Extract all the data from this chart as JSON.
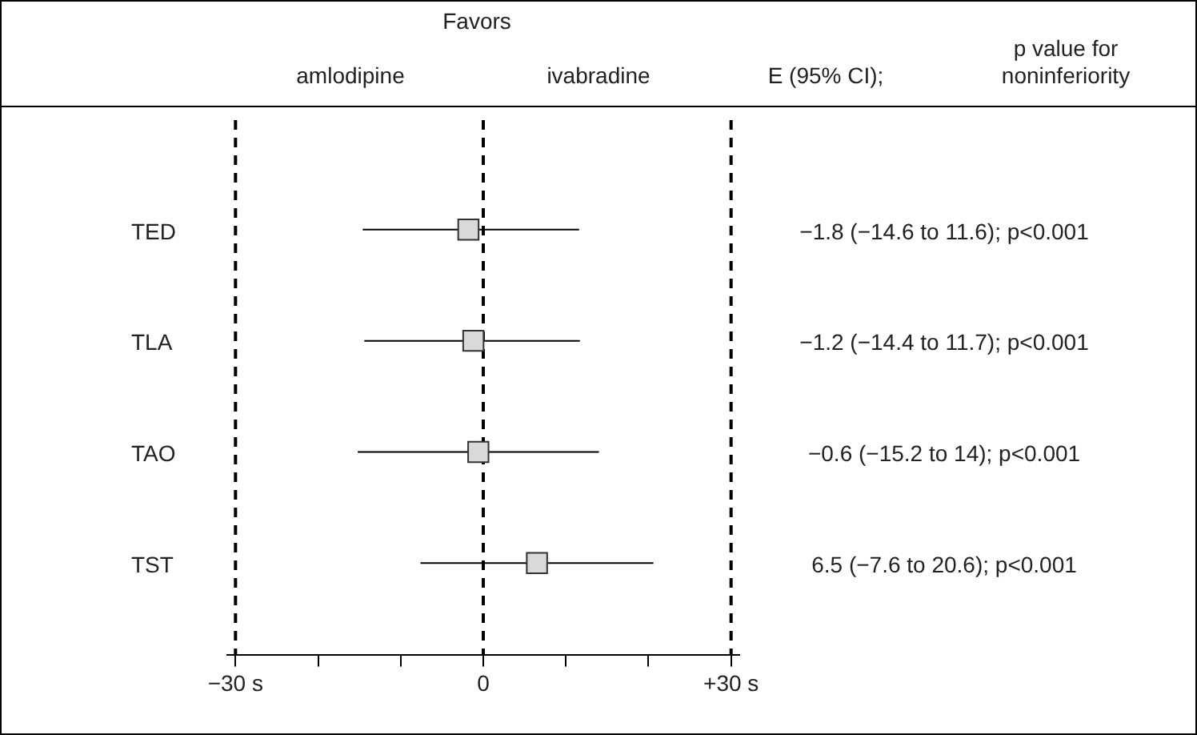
{
  "chart_data": {
    "type": "scatter",
    "orientation": "horizontal",
    "marker": "square",
    "color": "#d9d9d9",
    "categories": [
      "TED",
      "TLA",
      "TAO",
      "TST"
    ],
    "values": [
      -1.8,
      -1.2,
      -0.6,
      6.5
    ],
    "errors": [
      [
        -14.6,
        11.6
      ],
      [
        -14.4,
        11.7
      ],
      [
        -15.2,
        14
      ],
      [
        -7.6,
        20.6
      ]
    ],
    "value_labels": [
      "−1.8 (−14.6 to 11.6); p<0.001",
      "−1.2 (−14.4 to 11.7); p<0.001",
      "−0.6 (−15.2 to 14); p<0.001",
      "6.5 (−7.6 to 20.6); p<0.001"
    ],
    "xlim": [
      -31,
      31
    ],
    "xticks": [
      {
        "value": -30,
        "label": "−30 s"
      },
      {
        "value": -20,
        "label": null
      },
      {
        "value": -10,
        "label": null
      },
      {
        "value": 0,
        "label": "0"
      },
      {
        "value": 10,
        "label": null
      },
      {
        "value": 20,
        "label": null
      },
      {
        "value": 30,
        "label": "+30 s"
      }
    ],
    "ref_lines": [
      {
        "axis": "x",
        "value": -30,
        "color": "#000000",
        "line_style": "dashed"
      },
      {
        "axis": "x",
        "value": 0,
        "color": "#000000",
        "line_style": "dashed"
      },
      {
        "axis": "x",
        "value": 30,
        "color": "#000000",
        "line_style": "dashed"
      }
    ],
    "annotations": [
      "Favors",
      "amlodipine",
      "ivabradine",
      "E (95% CI);",
      "p value for\nnoninferiority"
    ],
    "grid": false,
    "legend": false
  }
}
